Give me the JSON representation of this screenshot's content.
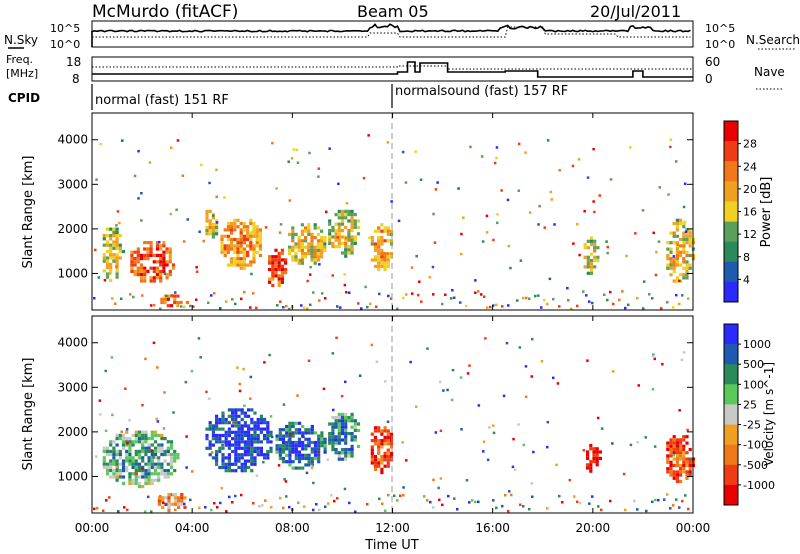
{
  "header": {
    "station": "McMurdo (fitACF)",
    "beam": "Beam 05",
    "date": "20/Jul/2011"
  },
  "noise_panel": {
    "left_label": "N.Sky",
    "left_ticks": [
      "10^5",
      "10^0"
    ],
    "right_ticks": [
      "10^5",
      "10^0"
    ],
    "right_label": "N.Search"
  },
  "freq_panel": {
    "left_label_1": "Freq.",
    "left_label_2": "[MHz]",
    "left_ticks": [
      "18",
      "8"
    ],
    "right_ticks": [
      "60",
      "0"
    ],
    "right_label": "Nave"
  },
  "cpid": {
    "label": "CPID",
    "modes": [
      {
        "text": "normal (fast) 151 RF",
        "start_hour": 0
      },
      {
        "text": "normalsound (fast) 157 RF",
        "start_hour": 12
      }
    ]
  },
  "x_axis": {
    "label": "Time UT",
    "ticks": [
      "00:00",
      "04:00",
      "08:00",
      "12:00",
      "16:00",
      "20:00",
      "00:00"
    ],
    "range_hours": [
      0,
      24
    ]
  },
  "colors": {
    "power": [
      "#2a2aff",
      "#1e5ab0",
      "#2a8a5a",
      "#5aa05a",
      "#f0d020",
      "#f0a020",
      "#f07818",
      "#f03c14",
      "#e80000"
    ],
    "velocity": [
      "#e80000",
      "#f03c14",
      "#f07818",
      "#f0a020",
      "#c8c8c8",
      "#5ac85a",
      "#2a8a5a",
      "#1e5ab0",
      "#2a2aff"
    ]
  },
  "chart_data": [
    {
      "type": "heatmap",
      "title": "Power",
      "ylabel": "Slant Range [km]",
      "xlabel": "Time UT",
      "ylim": [
        180,
        4600
      ],
      "y_ticks": [
        1000,
        2000,
        3000,
        4000
      ],
      "colorbar": {
        "label": "Power [dB]",
        "ticks": [
          "28",
          "24",
          "20",
          "16",
          "12",
          "8",
          "4"
        ],
        "range": [
          0,
          32
        ]
      },
      "echo_regions": [
        {
          "t0": 0.3,
          "t1": 1.2,
          "r0": 850,
          "r1": 2100,
          "level": 0.55
        },
        {
          "t0": 1.4,
          "t1": 3.3,
          "r0": 800,
          "r1": 1800,
          "level": 0.85
        },
        {
          "t0": 2.6,
          "t1": 3.8,
          "r0": 250,
          "r1": 600,
          "level": 0.8
        },
        {
          "t0": 4.4,
          "t1": 5.0,
          "r0": 1800,
          "r1": 2500,
          "level": 0.6
        },
        {
          "t0": 5.0,
          "t1": 6.8,
          "r0": 1100,
          "r1": 2300,
          "level": 0.7
        },
        {
          "t0": 6.9,
          "t1": 7.7,
          "r0": 700,
          "r1": 1700,
          "level": 0.9
        },
        {
          "t0": 7.7,
          "t1": 9.3,
          "r0": 1200,
          "r1": 2200,
          "level": 0.6
        },
        {
          "t0": 9.3,
          "t1": 10.7,
          "r0": 1400,
          "r1": 2500,
          "level": 0.55
        },
        {
          "t0": 11.0,
          "t1": 12.0,
          "r0": 1100,
          "r1": 2200,
          "level": 0.7
        },
        {
          "t0": 19.5,
          "t1": 20.2,
          "r0": 1000,
          "r1": 1900,
          "level": 0.55
        },
        {
          "t0": 22.8,
          "t1": 24.0,
          "r0": 800,
          "r1": 2300,
          "level": 0.6
        }
      ]
    },
    {
      "type": "heatmap",
      "title": "Velocity",
      "ylabel": "Slant Range [km]",
      "xlabel": "Time UT",
      "ylim": [
        180,
        4600
      ],
      "y_ticks": [
        1000,
        2000,
        3000,
        4000
      ],
      "colorbar": {
        "label": "Velocity [m s^-1]",
        "ticks": [
          "1000",
          "500",
          "100",
          "25",
          "-25",
          "-100",
          "-500",
          "-1000"
        ],
        "range": [
          -1000,
          1000
        ]
      },
      "echo_regions": [
        {
          "t0": 0.3,
          "t1": 3.4,
          "r0": 800,
          "r1": 2100,
          "level": 0.72
        },
        {
          "t0": 2.5,
          "t1": 3.8,
          "r0": 250,
          "r1": 700,
          "level": 0.4
        },
        {
          "t0": 4.4,
          "t1": 7.2,
          "r0": 1100,
          "r1": 2600,
          "level": 0.95
        },
        {
          "t0": 7.2,
          "t1": 9.3,
          "r0": 1200,
          "r1": 2300,
          "level": 0.9
        },
        {
          "t0": 9.3,
          "t1": 10.7,
          "r0": 1400,
          "r1": 2500,
          "level": 0.8
        },
        {
          "t0": 11.0,
          "t1": 12.0,
          "r0": 1100,
          "r1": 2200,
          "level": 0.25
        },
        {
          "t0": 19.6,
          "t1": 20.3,
          "r0": 1100,
          "r1": 1800,
          "level": 0.08
        },
        {
          "t0": 22.8,
          "t1": 24.0,
          "r0": 900,
          "r1": 2000,
          "level": 0.25
        }
      ]
    }
  ]
}
